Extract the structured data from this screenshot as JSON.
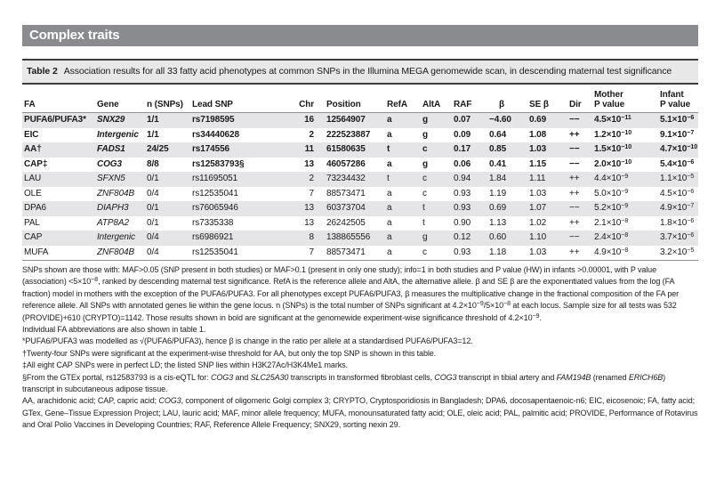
{
  "banner": {
    "title": "Complex traits"
  },
  "caption": {
    "label": "Table 2",
    "text": "Association results for all 33 fatty acid phenotypes at common SNPs in the Illumina MEGA genomewide scan, in descending maternal test significance"
  },
  "colors": {
    "banner_bg": "#8a8b8e",
    "caption_bg": "#e8e8e9",
    "row_stripe": "#e5e5e7",
    "rule_dark": "#3d3d3f",
    "rule_light": "#909090"
  },
  "table": {
    "columns": [
      {
        "label": "FA"
      },
      {
        "label": "Gene"
      },
      {
        "label": "n (SNPs)"
      },
      {
        "label": "Lead SNP"
      },
      {
        "label": "Chr"
      },
      {
        "label": "Position"
      },
      {
        "label": "RefA"
      },
      {
        "label": "AltA"
      },
      {
        "label": "RAF"
      },
      {
        "label": "β"
      },
      {
        "label": "SE β"
      },
      {
        "label": "Dir"
      },
      {
        "label": "Mother",
        "label2": "P value"
      },
      {
        "label": "Infant",
        "label2": "P value"
      }
    ],
    "rows": [
      {
        "fa": "PUFA6/PUFA3*",
        "gene": "SNX29",
        "n": "1/1",
        "snp": "rs7198595",
        "chr": "16",
        "pos": "12564907",
        "refa": "a",
        "alta": "g",
        "raf": "0.07",
        "beta": "−4.60",
        "se": "0.69",
        "dir": "−−",
        "pm": "4.5×10",
        "pme": "−11",
        "pi": "5.1×10",
        "pie": "−6",
        "significant": true
      },
      {
        "fa": "EIC",
        "gene": "Intergenic",
        "n": "1/1",
        "snp": "rs34440628",
        "chr": "2",
        "pos": "222523887",
        "refa": "a",
        "alta": "g",
        "raf": "0.09",
        "beta": "0.64",
        "se": "1.08",
        "dir": "++",
        "pm": "1.2×10",
        "pme": "−10",
        "pi": "9.1×10",
        "pie": "−7",
        "significant": true
      },
      {
        "fa": "AA†",
        "gene": "FADS1",
        "n": "24/25",
        "snp": "rs174556",
        "chr": "11",
        "pos": "61580635",
        "refa": "t",
        "alta": "c",
        "raf": "0.17",
        "beta": "0.85",
        "se": "1.03",
        "dir": "−−",
        "pm": "1.5×10",
        "pme": "−10",
        "pi": "4.7×10",
        "pie": "−10",
        "significant": true
      },
      {
        "fa": "CAP‡",
        "gene": "COG3",
        "n": "8/8",
        "snp": "rs12583793§",
        "chr": "13",
        "pos": "46057286",
        "refa": "a",
        "alta": "g",
        "raf": "0.06",
        "beta": "0.41",
        "se": "1.15",
        "dir": "−−",
        "pm": "2.0×10",
        "pme": "−10",
        "pi": "5.4×10",
        "pie": "−6",
        "significant": true
      },
      {
        "fa": "LAU",
        "gene": "SFXN5",
        "n": "0/1",
        "snp": "rs11695051",
        "chr": "2",
        "pos": "73234432",
        "refa": "t",
        "alta": "c",
        "raf": "0.94",
        "beta": "1.84",
        "se": "1.11",
        "dir": "++",
        "pm": "4.4×10",
        "pme": "−9",
        "pi": "1.1×10",
        "pie": "−5",
        "significant": false
      },
      {
        "fa": "OLE",
        "gene": "ZNF804B",
        "n": "0/4",
        "snp": "rs12535041",
        "chr": "7",
        "pos": "88573471",
        "refa": "a",
        "alta": "c",
        "raf": "0.93",
        "beta": "1.19",
        "se": "1.03",
        "dir": "++",
        "pm": "5.0×10",
        "pme": "−9",
        "pi": "4.5×10",
        "pie": "−6",
        "significant": false
      },
      {
        "fa": "DPA6",
        "gene": "DIAPH3",
        "n": "0/1",
        "snp": "rs76065946",
        "chr": "13",
        "pos": "60373704",
        "refa": "a",
        "alta": "t",
        "raf": "0.93",
        "beta": "0.69",
        "se": "1.07",
        "dir": "−−",
        "pm": "5.2×10",
        "pme": "−9",
        "pi": "4.9×10",
        "pie": "−7",
        "significant": false
      },
      {
        "fa": "PAL",
        "gene": "ATP8A2",
        "n": "0/1",
        "snp": "rs7335338",
        "chr": "13",
        "pos": "26242505",
        "refa": "a",
        "alta": "t",
        "raf": "0.90",
        "beta": "1.13",
        "se": "1.02",
        "dir": "++",
        "pm": "2.1×10",
        "pme": "−8",
        "pi": "1.8×10",
        "pie": "−6",
        "significant": false
      },
      {
        "fa": "CAP",
        "gene": "Intergenic",
        "n": "0/4",
        "snp": "rs6986921",
        "chr": "8",
        "pos": "138865556",
        "refa": "a",
        "alta": "g",
        "raf": "0.12",
        "beta": "0.60",
        "se": "1.10",
        "dir": "−−",
        "pm": "2.4×10",
        "pme": "−8",
        "pi": "3.7×10",
        "pie": "−6",
        "significant": false
      },
      {
        "fa": "MUFA",
        "gene": "ZNF804B",
        "n": "0/4",
        "snp": "rs12535041",
        "chr": "7",
        "pos": "88573471",
        "refa": "a",
        "alta": "c",
        "raf": "0.93",
        "beta": "1.18",
        "se": "1.03",
        "dir": "++",
        "pm": "4.9×10",
        "pme": "−8",
        "pi": "3.2×10",
        "pie": "−5",
        "significant": false
      }
    ]
  },
  "footnotes": [
    [
      {
        "t": "SNPs shown are those with: MAF>0.05 (SNP present in both studies) or MAF>0.1 (present in only one study); info=1 in both studies and P value (HW) in infants >0.00001, with P value (association) <5×10"
      },
      {
        "t": "−8",
        "s": "sup"
      },
      {
        "t": ", ranked by descending maternal test significance. RefA is the reference allele and AltA, the alternative allele. β and SE β are the exponentiated values from the log (FA fraction) model in mothers with the exception of the PUFA6/PUFA3. For all phenotypes except PUFA6/PUFA3, β measures the multiplicative change in the fractional composition of the FA per reference allele. All SNPs with annotated genes lie within the gene locus. n (SNPs) is the total number of SNPs significant at 4.2×10"
      },
      {
        "t": "−9",
        "s": "sup"
      },
      {
        "t": "/5×10"
      },
      {
        "t": "−8",
        "s": "sup"
      },
      {
        "t": " at each locus. Sample size for all tests was 532 (PROVIDE)+610 (CRYPTO)=1142. Those results shown in bold are significant at the genomewide experiment-wise significance threshold of 4.2×10"
      },
      {
        "t": "−9",
        "s": "sup"
      },
      {
        "t": "."
      }
    ],
    [
      {
        "t": "Individual FA abbreviations are also shown in table 1."
      }
    ],
    [
      {
        "t": "*PUFA6/PUFA3 was modelled as √(PUFA6/PUFA3), hence β is change in the ratio per allele at a standardised PUFA6/PUFA3=12."
      }
    ],
    [
      {
        "t": "†Twenty-four SNPs were significant at the experiment-wise threshold for AA, but only the top SNP is shown in this table."
      }
    ],
    [
      {
        "t": "‡All eight CAP SNPs were in perfect LD; the listed SNP lies within H3K27Ac/H3K4Me1 marks."
      }
    ],
    [
      {
        "t": "§From the GTEx portal, rs12583793 is a cis-eQTL for: "
      },
      {
        "t": "COG3",
        "s": "i"
      },
      {
        "t": " and "
      },
      {
        "t": "SLC25A30",
        "s": "i"
      },
      {
        "t": " transcripts in transformed fibroblast cells, "
      },
      {
        "t": "COG3",
        "s": "i"
      },
      {
        "t": " transcript in tibial artery and "
      },
      {
        "t": "FAM194B",
        "s": "i"
      },
      {
        "t": " (renamed "
      },
      {
        "t": "ERICH6B",
        "s": "i"
      },
      {
        "t": ") transcript in subcutaneous adipose tissue."
      }
    ],
    [
      {
        "t": "AA, arachidonic acid; CAP, capric acid; "
      },
      {
        "t": "COG3",
        "s": "i"
      },
      {
        "t": ", component of oligomeric Golgi complex 3; CRYPTO, Cryptosporidiosis in Bangladesh; DPA6, docosapentaenoic-n6; EIC, eicosenoic; FA, fatty acid; GTex, Gene–Tissue Expression Project; LAU, lauric acid; MAF, minor allele frequency; MUFA, monounsaturated fatty acid; OLE, oleic acid; PAL, palmitic acid; PROVIDE, Performance of Rotavirus and Oral Polio Vaccines in Developing Countries; RAF, Reference Allele Frequency; SNX29, sorting nexin 29."
      }
    ]
  ]
}
